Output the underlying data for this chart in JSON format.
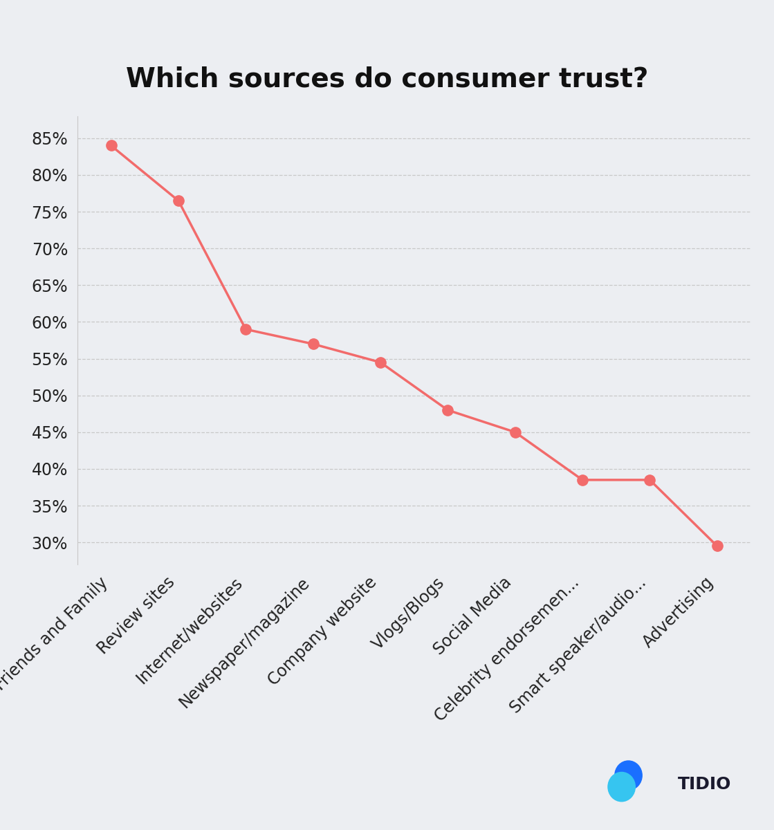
{
  "title": "Which sources do consumer trust?",
  "categories": [
    "Friends and Family",
    "Review sites",
    "Internet/websites",
    "Newspaper/magazine",
    "Company website",
    "Vlogs/Blogs",
    "Social Media",
    "Celebrity endorsemen...",
    "Smart speaker/audio...",
    "Advertising"
  ],
  "values": [
    84,
    76.5,
    59,
    57,
    54.5,
    48,
    45,
    38.5,
    38.5,
    29.5
  ],
  "line_color": "#F26B6B",
  "marker_color": "#F26B6B",
  "background_color": "#ECEEF2",
  "plot_bg_color": "#ECEEF2",
  "title_fontsize": 28,
  "tick_label_fontsize": 17,
  "ylim": [
    27,
    88
  ],
  "yticks": [
    30,
    35,
    40,
    45,
    50,
    55,
    60,
    65,
    70,
    75,
    80,
    85
  ],
  "grid_color": "#C8C8C8",
  "marker_size": 11,
  "line_width": 2.5,
  "tidio_text_color": "#1a1a2e",
  "tidio_fontsize": 18
}
